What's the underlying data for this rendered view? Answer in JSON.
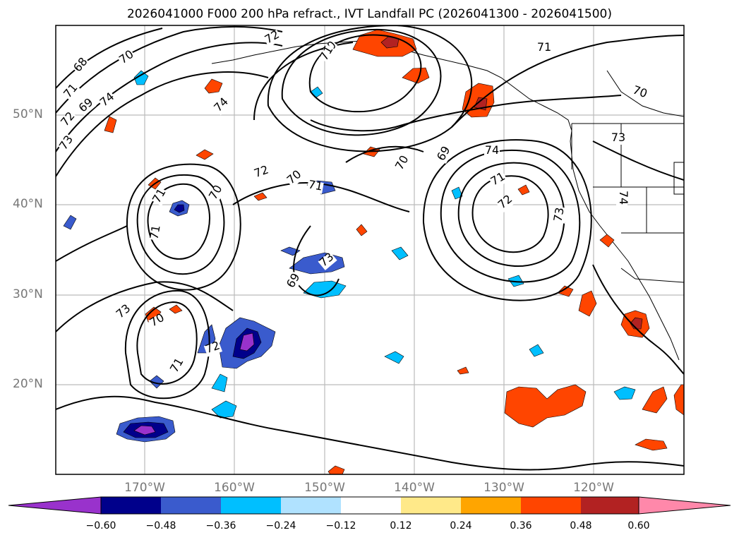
{
  "title": "2026041000 F000 200 hPa refract., IVT Landfall PC (2026041300 - 2026041500)",
  "map": {
    "lat_labels": [
      "50°N",
      "40°N",
      "30°N",
      "20°N"
    ],
    "lon_labels": [
      "170°W",
      "160°W",
      "150°W",
      "140°W",
      "130°W",
      "120°W"
    ],
    "contour_labels": [
      "68",
      "70",
      "71",
      "69",
      "70",
      "71",
      "72",
      "73",
      "74",
      "74",
      "72",
      "71",
      "70",
      "73",
      "74",
      "73",
      "72",
      "71",
      "70",
      "69",
      "74",
      "71",
      "72",
      "70",
      "69",
      "73",
      "73",
      "72",
      "71",
      "70",
      "71",
      "70",
      "71"
    ],
    "grid": true
  },
  "colorbar": {
    "ticks": [
      "−0.60",
      "−0.48",
      "−0.36",
      "−0.24",
      "−0.12",
      "0.12",
      "0.24",
      "0.36",
      "0.48",
      "0.60"
    ],
    "colors": [
      "#9932cc",
      "#00008b",
      "#3a5bcd",
      "#00bfff",
      "#b0e2ff",
      "#ffffff",
      "#ffe989",
      "#ffa500",
      "#ff4500",
      "#b22222",
      "#ff88aa"
    ]
  }
}
